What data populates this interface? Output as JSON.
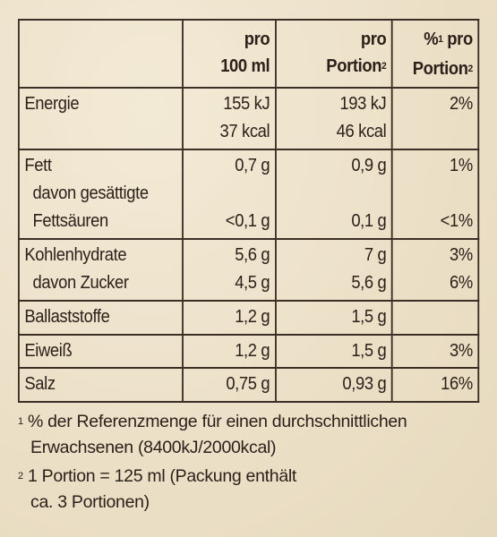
{
  "header": {
    "col1": "",
    "col2_line1": "pro",
    "col2_line2": "100 ml",
    "col3_line1": "pro",
    "col3_line2": "Portion",
    "col3_sup": "2",
    "col4_pct": "%",
    "col4_sup": "1",
    "col4_line1": " pro",
    "col4_line2": "Portion",
    "col4_sup2": "2"
  },
  "rows": {
    "energie": {
      "label": "Energie",
      "v100_a": "155 kJ",
      "v100_b": "37 kcal",
      "vpor_a": "193 kJ",
      "vpor_b": "46 kcal",
      "pct": "2%"
    },
    "fett": {
      "label": "Fett",
      "sub1": "davon gesättigte",
      "sub2": "Fettsäuren",
      "v100": "0,7 g",
      "vpor": "0,9 g",
      "pct": "1%",
      "sub_v100": "<0,1 g",
      "sub_vpor": "0,1 g",
      "sub_pct": "<1%"
    },
    "kh": {
      "label": "Kohlenhydrate",
      "sub": "davon Zucker",
      "v100": "5,6 g",
      "vpor": "7 g",
      "pct": "3%",
      "sub_v100": "4,5 g",
      "sub_vpor": "5,6 g",
      "sub_pct": "6%"
    },
    "ballast": {
      "label": "Ballaststoffe",
      "v100": "1,2 g",
      "vpor": "1,5 g",
      "pct": ""
    },
    "eiweiss": {
      "label": "Eiweiß",
      "v100": "1,2 g",
      "vpor": "1,5 g",
      "pct": "3%"
    },
    "salz": {
      "label": "Salz",
      "v100": "0,75 g",
      "vpor": "0,93 g",
      "pct": "16%"
    }
  },
  "footnotes": {
    "fn1_mark": "1",
    "fn1_line1": " % der Referenzmenge für einen durchschnittlichen",
    "fn1_line2": "Erwachsenen (8400kJ/2000kcal)",
    "fn2_mark": "2",
    "fn2_line1": " 1 Portion = 125 ml (Packung enthält",
    "fn2_line2": "ca. 3 Portionen)"
  }
}
